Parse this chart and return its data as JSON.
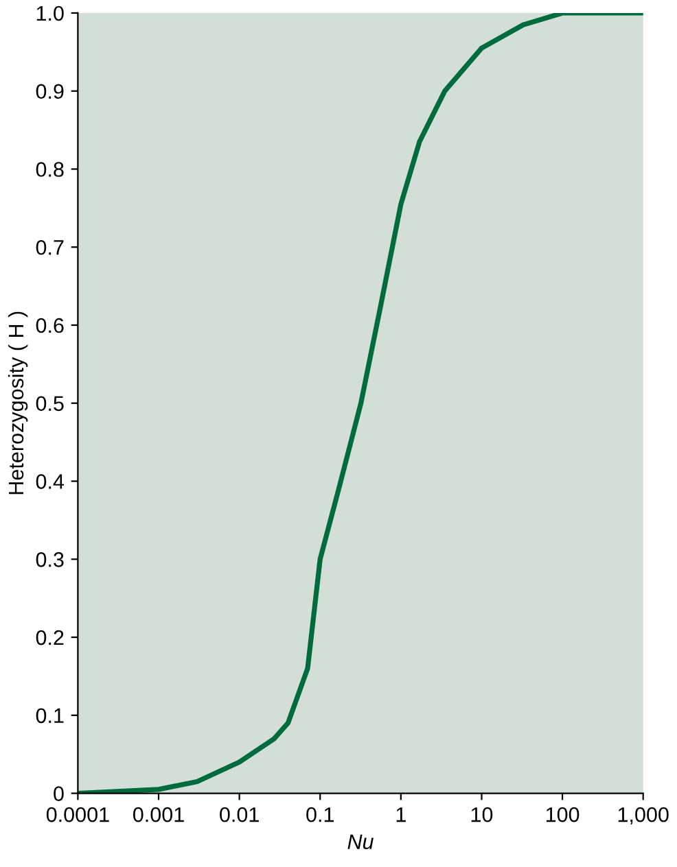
{
  "chart_data": {
    "type": "line",
    "xlabel": "Nu",
    "ylabel": "Heterozygosity ( H )",
    "log": "x",
    "series": [
      {
        "color": "#006b3c",
        "x": [
          0.0001,
          0.001,
          0.003,
          0.01,
          0.027,
          0.04,
          0.07,
          0.1,
          0.17,
          0.32,
          0.55,
          1,
          1.7,
          3.5,
          10,
          33,
          100,
          1000
        ],
        "values": [
          0.0,
          0.005,
          0.015,
          0.04,
          0.07,
          0.09,
          0.16,
          0.3,
          0.39,
          0.5,
          0.62,
          0.755,
          0.835,
          0.9,
          0.955,
          0.985,
          1.0,
          1.0
        ]
      }
    ],
    "xlim": [
      0.0001,
      1000
    ],
    "xticks": [
      0.0001,
      0.001,
      0.01,
      0.1,
      1,
      10,
      100,
      {
        "value": 1000,
        "label": "1,000"
      }
    ],
    "ylim": [
      0,
      1.0
    ],
    "yticks": [
      0,
      0.1,
      0.2,
      0.3,
      0.4,
      0.5,
      0.6,
      0.7,
      0.8,
      0.9,
      {
        "value": 1.0,
        "label": "1.0"
      }
    ],
    "grid": false,
    "legend": false,
    "marker": "none",
    "line_style": "solid"
  }
}
